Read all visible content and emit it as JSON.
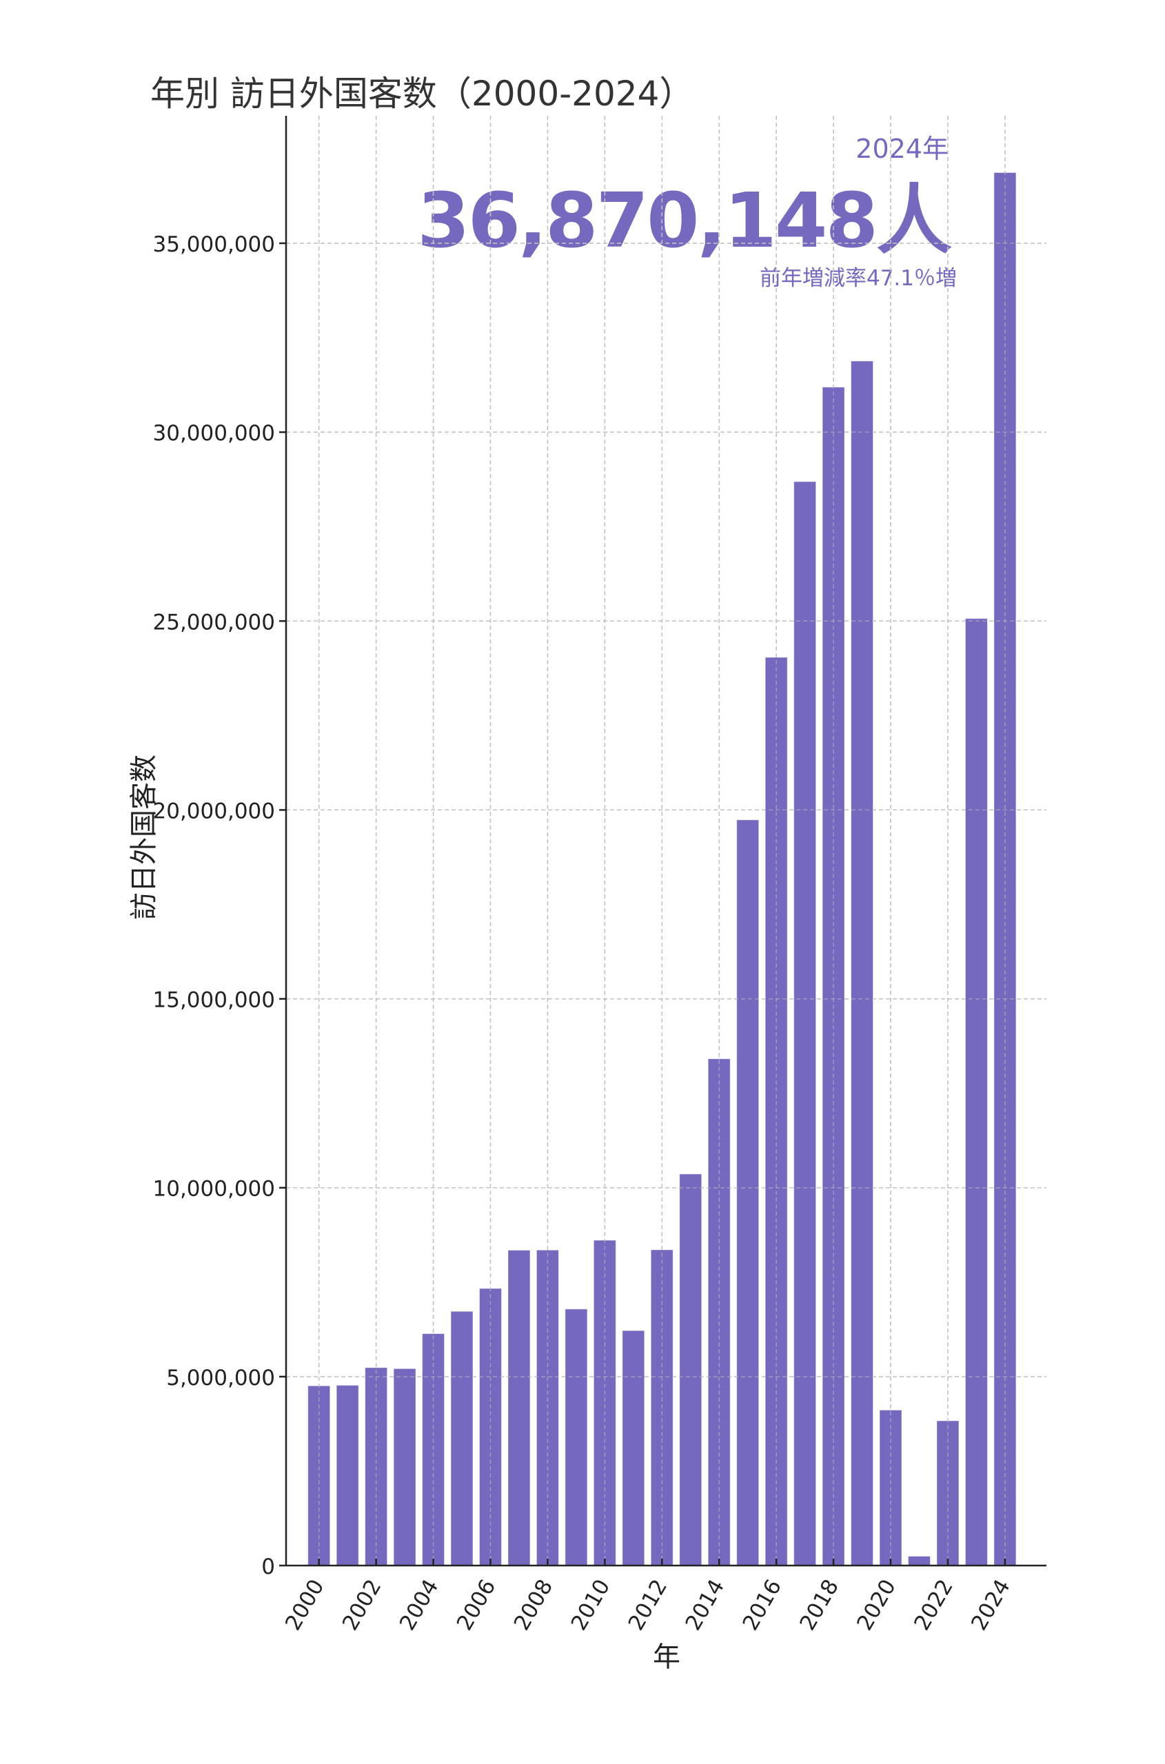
{
  "chart_data": {
    "type": "bar",
    "title": "年別 訪日外国客数（2000-2024）",
    "xlabel": "年",
    "ylabel": "訪日外国客数",
    "categories": [
      "2000",
      "2001",
      "2002",
      "2003",
      "2004",
      "2005",
      "2006",
      "2007",
      "2008",
      "2009",
      "2010",
      "2011",
      "2012",
      "2013",
      "2014",
      "2015",
      "2016",
      "2017",
      "2018",
      "2019",
      "2020",
      "2021",
      "2022",
      "2023",
      "2024"
    ],
    "values": [
      4757146,
      4771555,
      5238963,
      5211725,
      6137905,
      6727926,
      7334077,
      8346969,
      8350835,
      6789658,
      8611175,
      6218752,
      8358105,
      10363904,
      13413467,
      19737409,
      24039700,
      28691073,
      31191856,
      31882049,
      4115828,
      245862,
      3832110,
      25066350,
      36870148
    ],
    "x_tick_labels": [
      "2000",
      "2002",
      "2004",
      "2006",
      "2008",
      "2010",
      "2012",
      "2014",
      "2016",
      "2018",
      "2020",
      "2022",
      "2024"
    ],
    "y_tick_values": [
      0,
      5000000,
      10000000,
      15000000,
      20000000,
      25000000,
      30000000,
      35000000
    ],
    "y_tick_labels": [
      "0",
      "5,000,000",
      "10,000,000",
      "15,000,000",
      "20,000,000",
      "25,000,000",
      "30,000,000",
      "35,000,000"
    ],
    "ylim": [
      0,
      38400000
    ],
    "xlim": [
      1998.85,
      2025.45
    ],
    "grid": true,
    "bar_color": "#7469bf",
    "annotation": {
      "year": "2024年",
      "value": "36,870,148人",
      "change": "前年増減率47.1％増"
    }
  }
}
